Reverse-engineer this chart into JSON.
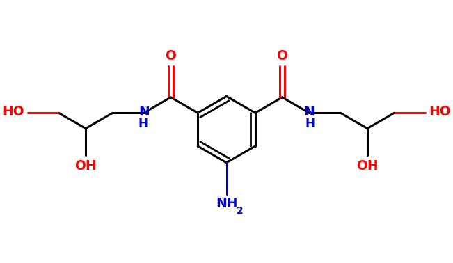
{
  "bg_color": "#ffffff",
  "bond_color": "#000000",
  "oxygen_color": "#ff0000",
  "nitrogen_color": "#0000cc",
  "bond_width": 2.2,
  "figsize": [
    6.51,
    3.78
  ],
  "dpi": 100,
  "xlim": [
    -1.05,
    1.05
  ],
  "ylim": [
    -0.58,
    0.58
  ]
}
